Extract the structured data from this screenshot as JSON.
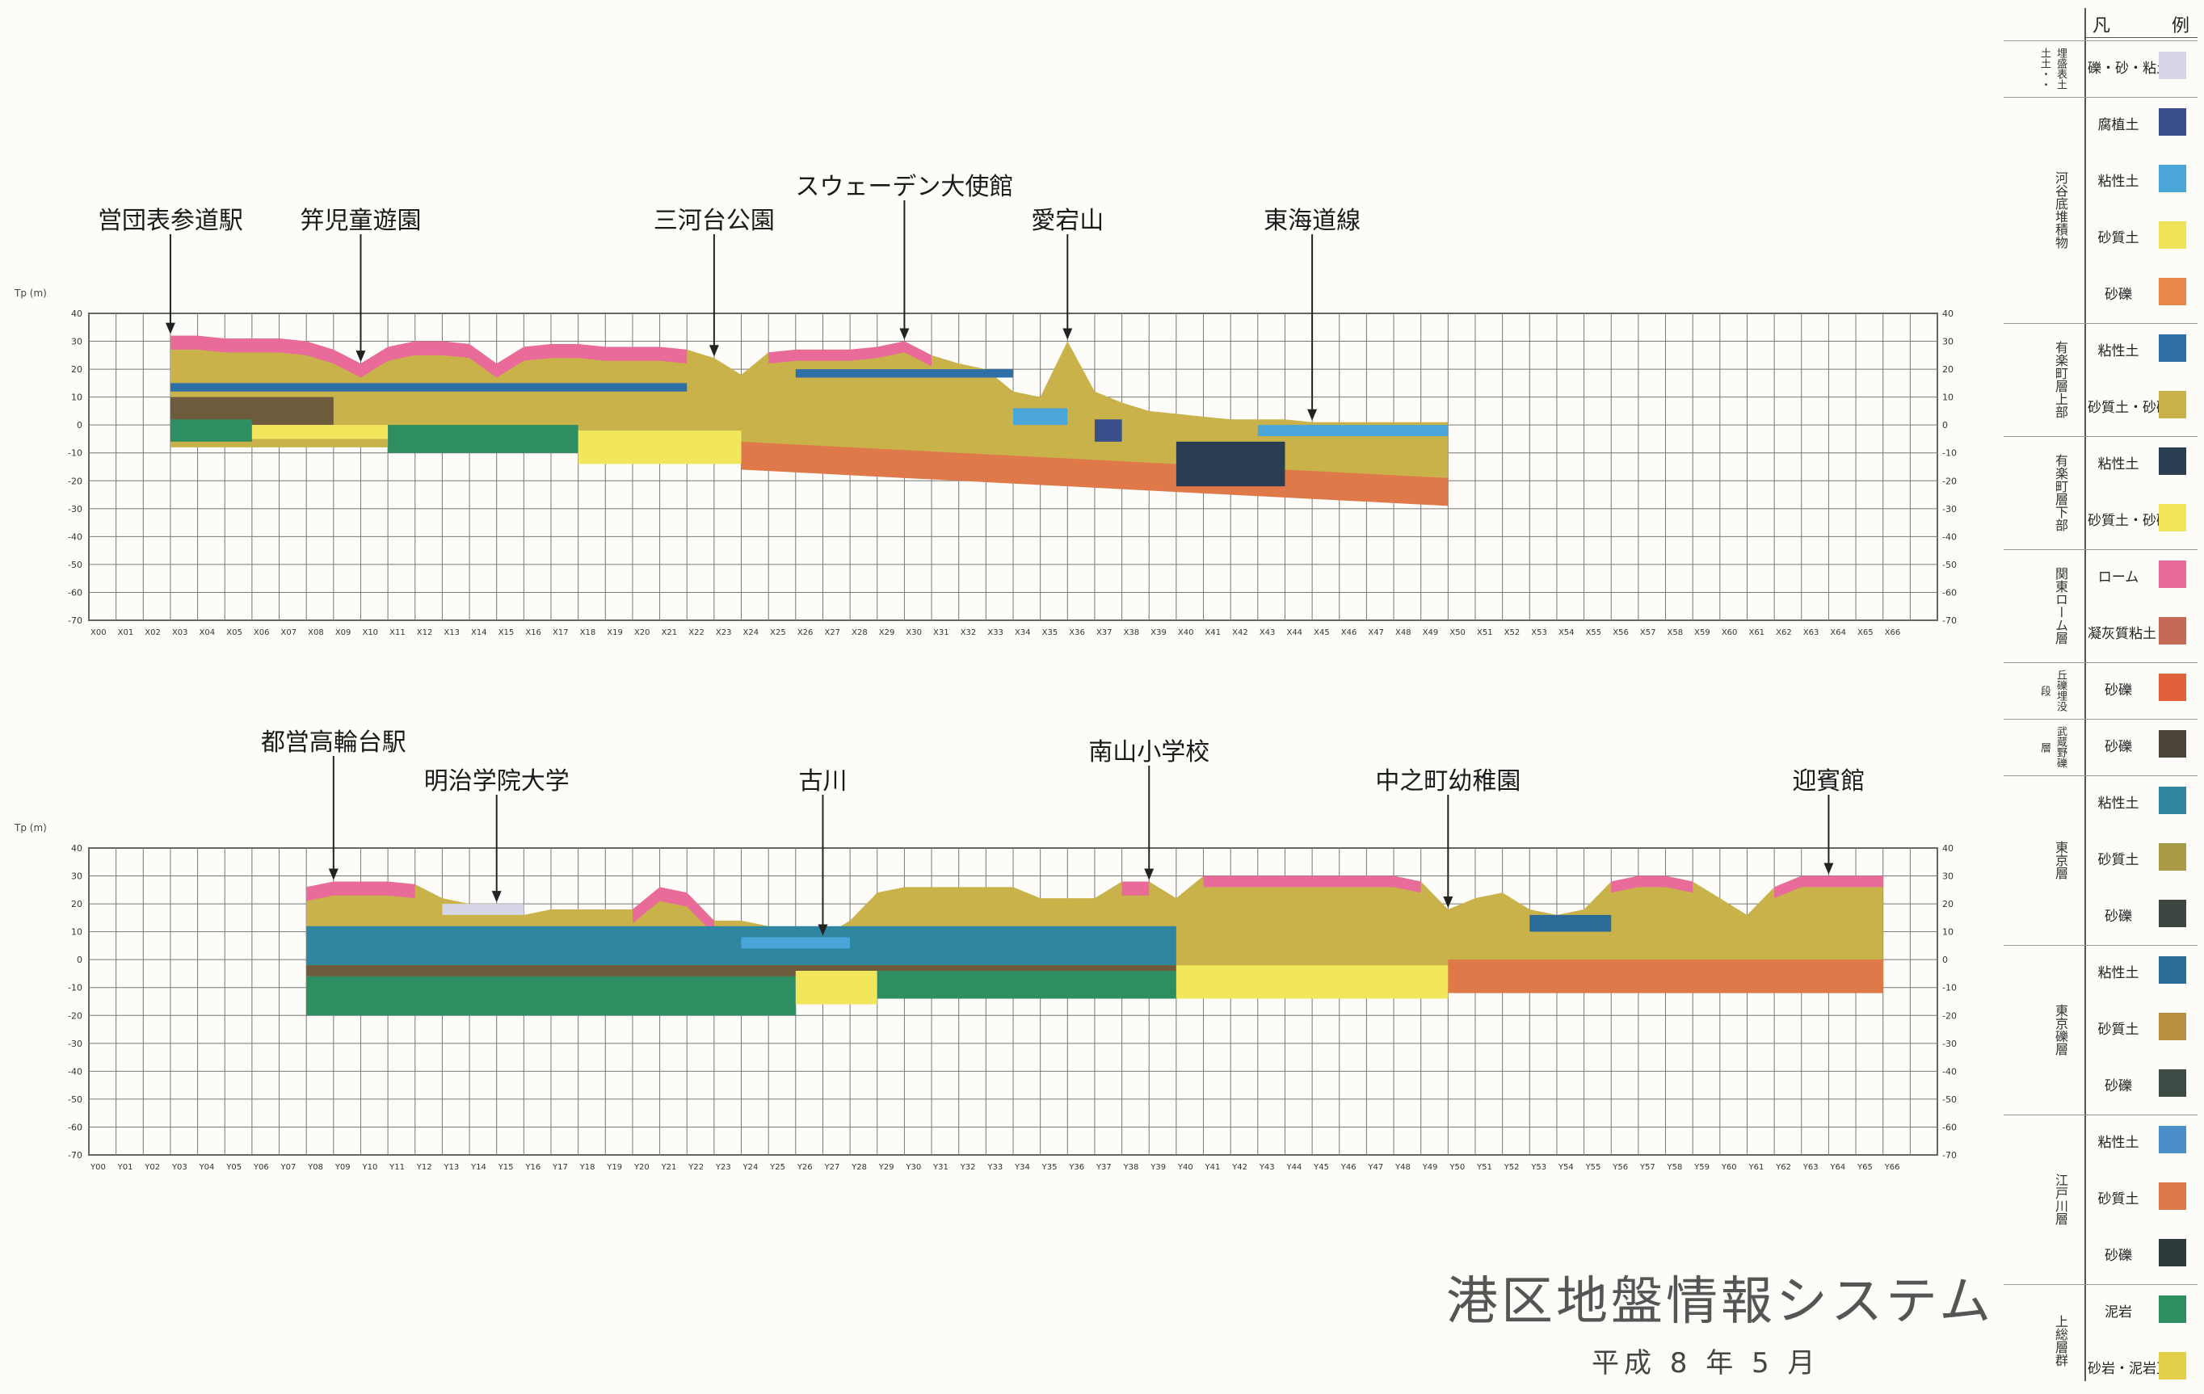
{
  "sections": [
    {
      "id": "upper",
      "axis_title": "Tp (m)",
      "prefix": "X",
      "landmarks": [
        {
          "label": "営団表参道駅",
          "x": 3
        },
        {
          "label": "笄児童遊園",
          "x": 10
        },
        {
          "label": "三河台公園",
          "x": 23
        },
        {
          "label": "スウェーデン大使館",
          "x": 30
        },
        {
          "label": "愛宕山",
          "x": 36
        },
        {
          "label": "東海道線",
          "x": 45
        }
      ]
    },
    {
      "id": "lower",
      "axis_title": "Tp (m)",
      "prefix": "Y",
      "landmarks": [
        {
          "label": "都営高輪台駅",
          "x": 9
        },
        {
          "label": "明治学院大学",
          "x": 15
        },
        {
          "label": "古川",
          "x": 27
        },
        {
          "label": "南山小学校",
          "x": 39
        },
        {
          "label": "中之町幼稚園",
          "x": 50
        },
        {
          "label": "迎賓館",
          "x": 64
        }
      ]
    }
  ],
  "y_ticks": [
    "40",
    "30",
    "20",
    "10",
    "0",
    "-10",
    "-20",
    "-30",
    "-40",
    "-50",
    "-60",
    "-70"
  ],
  "legend": {
    "header_left": "凡",
    "header_right": "例",
    "groups": [
      {
        "name": "埋盛表土土土・・",
        "items": [
          {
            "label": "礫・砂・粘土",
            "color": "#d6d6e6"
          }
        ]
      },
      {
        "name": "河谷底堆積物",
        "items": [
          {
            "label": "腐植土",
            "color": "#3b4f8a"
          },
          {
            "label": "粘性土",
            "color": "#4aa6d8"
          },
          {
            "label": "砂質土",
            "color": "#f0e35a"
          },
          {
            "label": "砂礫",
            "color": "#e8884a"
          }
        ]
      },
      {
        "name": "有楽町層上部",
        "items": [
          {
            "label": "粘性土",
            "color": "#2f6fa8"
          },
          {
            "label": "砂質土・砂礫",
            "color": "#c9b24a"
          }
        ]
      },
      {
        "name": "有楽町層下部",
        "items": [
          {
            "label": "粘性土",
            "color": "#2a3e52"
          },
          {
            "label": "砂質土・砂礫",
            "color": "#f2e65c"
          }
        ]
      },
      {
        "name": "関東ローム層",
        "items": [
          {
            "label": "ローム",
            "color": "#e86b9a"
          },
          {
            "label": "凝灰質粘土",
            "color": "#c46a56"
          }
        ]
      },
      {
        "name": "丘礫埋没段",
        "items": [
          {
            "label": "砂礫",
            "color": "#e0613a"
          }
        ]
      },
      {
        "name": "武蔵野礫層",
        "items": [
          {
            "label": "砂礫",
            "color": "#4a4438"
          }
        ]
      },
      {
        "name": "東京層",
        "items": [
          {
            "label": "粘性土",
            "color": "#2e86a0"
          },
          {
            "label": "砂質土",
            "color": "#a99a45"
          },
          {
            "label": "砂礫",
            "color": "#3d4640"
          }
        ]
      },
      {
        "name": "東京礫層",
        "items": [
          {
            "label": "粘性土",
            "color": "#2a6c96"
          },
          {
            "label": "砂質土",
            "color": "#b8903e"
          },
          {
            "label": "砂礫",
            "color": "#3e4a44"
          }
        ]
      },
      {
        "name": "江戸川層",
        "items": [
          {
            "label": "粘性土",
            "color": "#4b8fc8"
          },
          {
            "label": "砂質土",
            "color": "#e0794a"
          },
          {
            "label": "砂礫",
            "color": "#2c3a3a"
          }
        ]
      },
      {
        "name": "上総層群",
        "items": [
          {
            "label": "泥岩",
            "color": "#2e8e62"
          },
          {
            "label": "砂岩・泥岩互層",
            "color": "#e3cf4a"
          }
        ]
      }
    ]
  },
  "title": "港区地盤情報システム",
  "date": "平成 8 年 5 月"
}
